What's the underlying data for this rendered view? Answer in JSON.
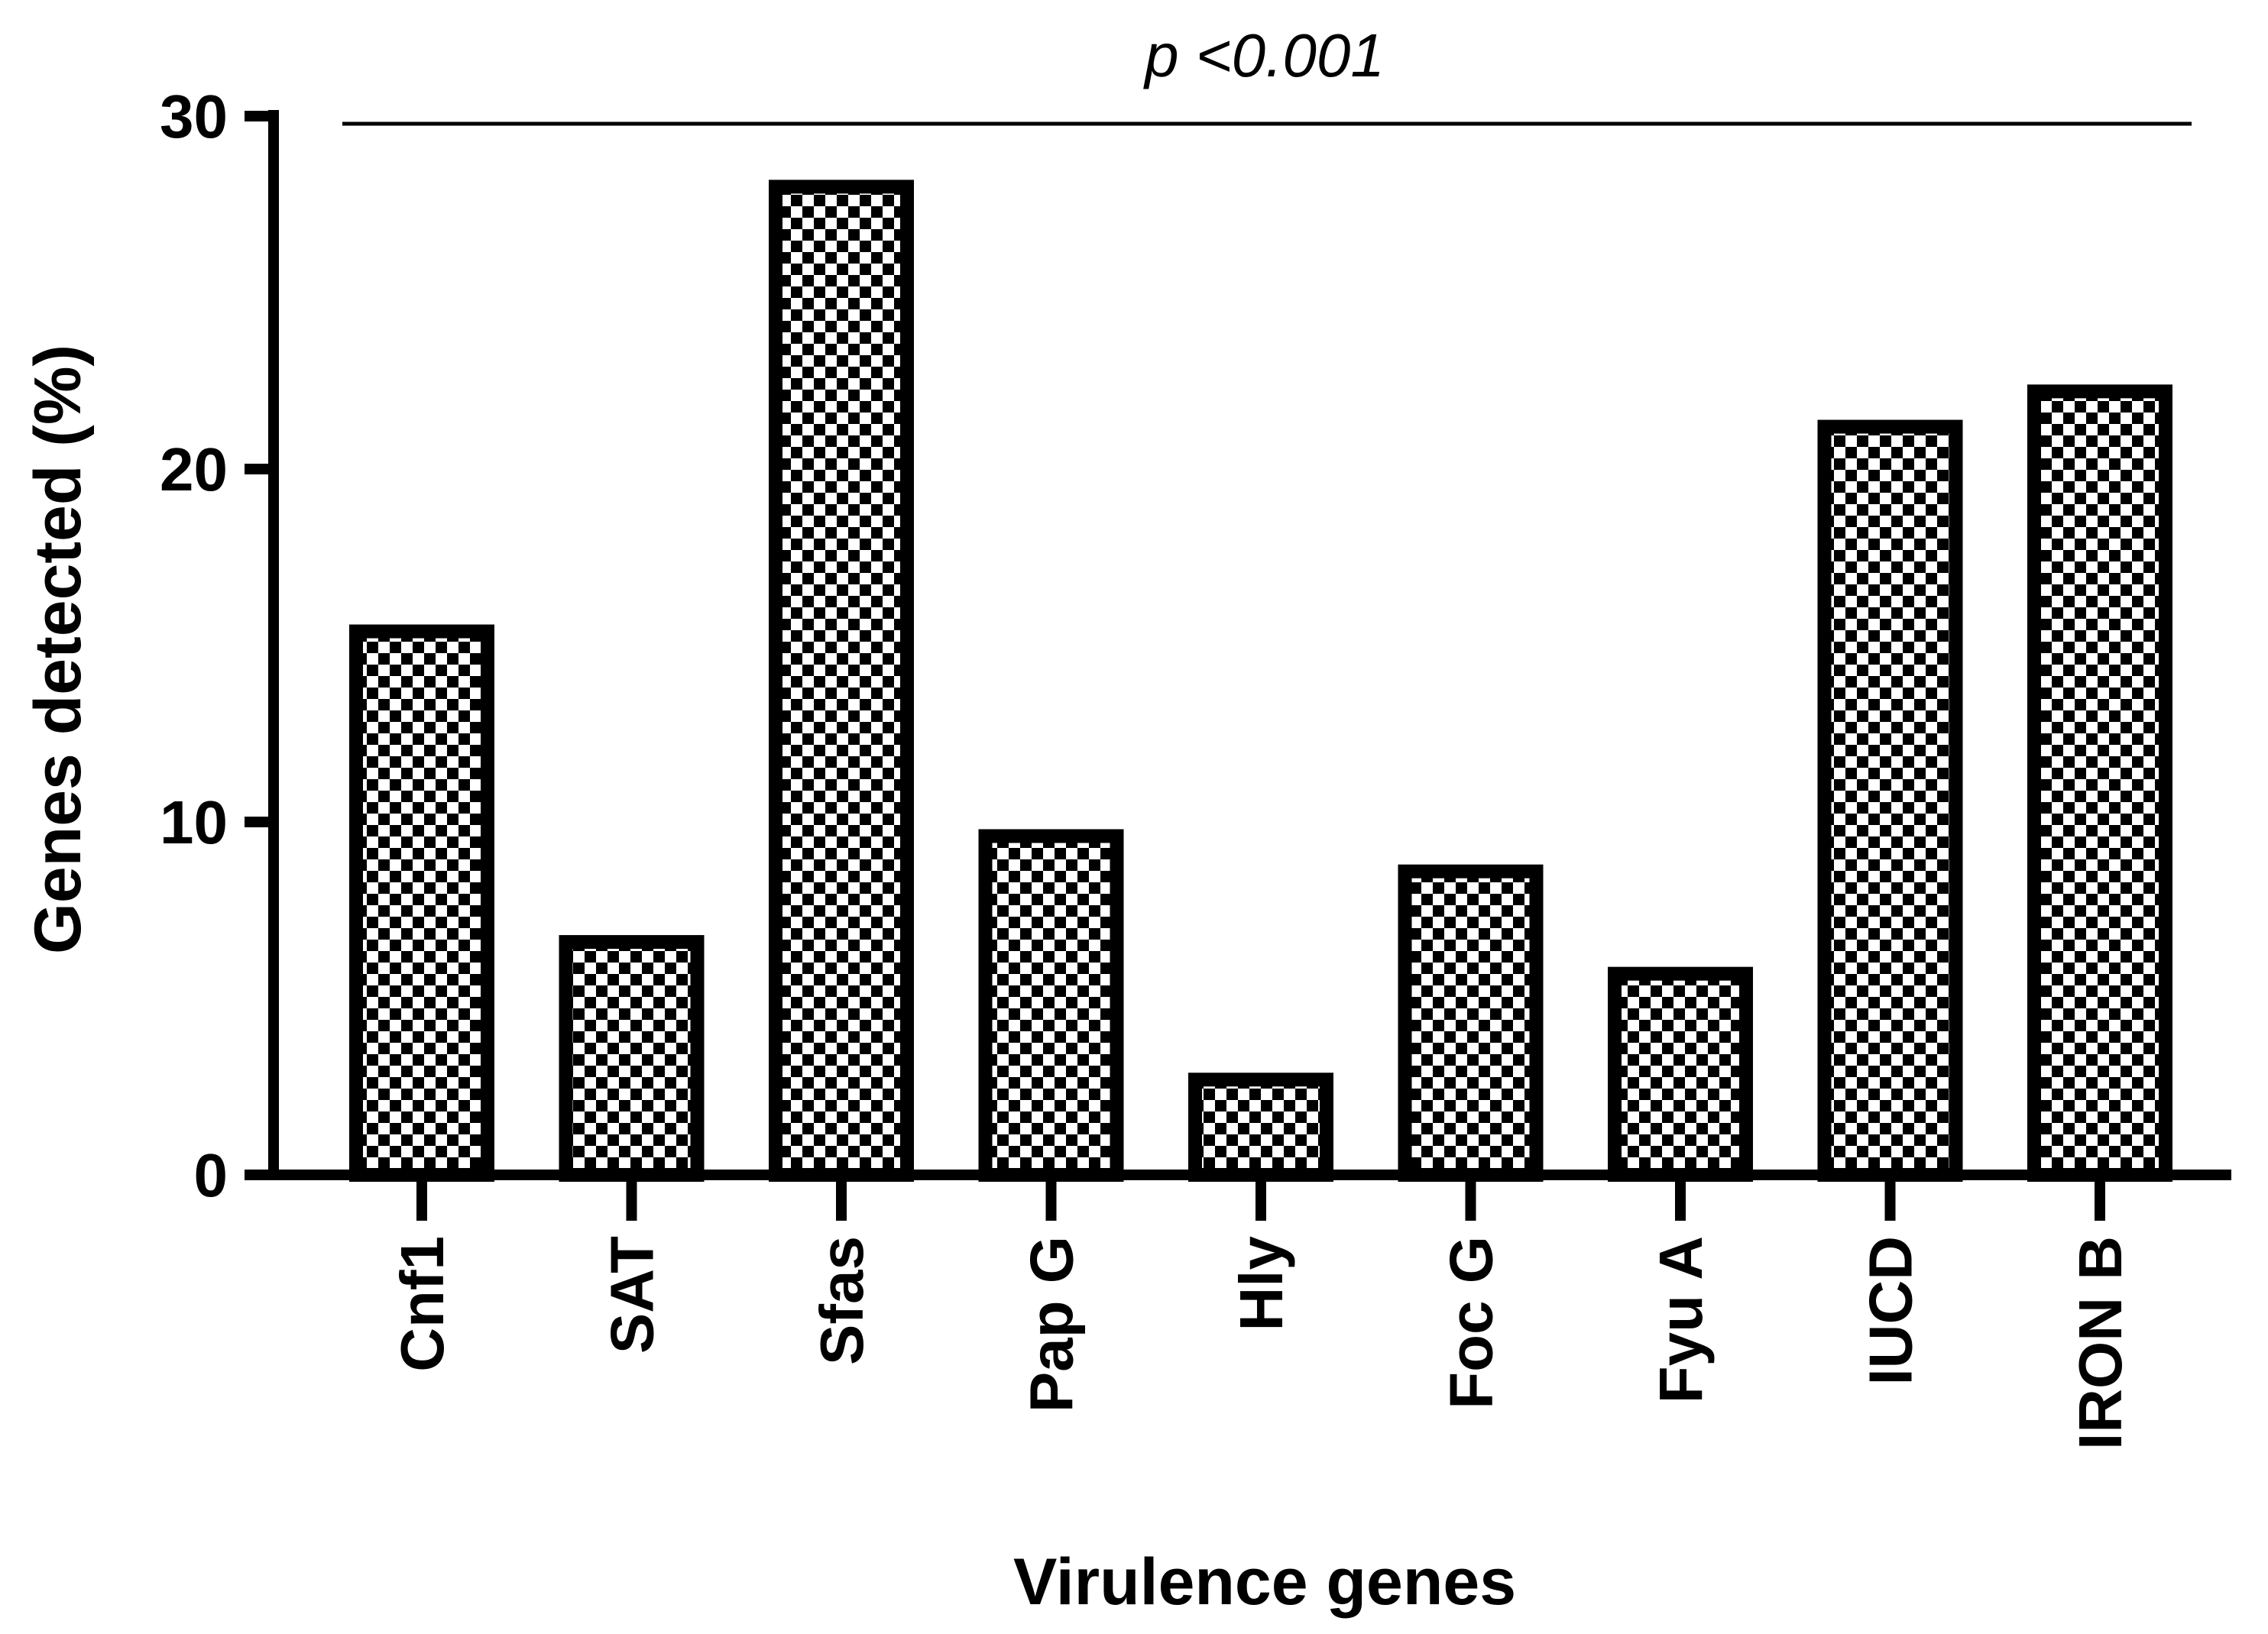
{
  "chart_data": {
    "type": "bar",
    "title": "",
    "xlabel": "Virulence genes",
    "ylabel": "Genes detected (%)",
    "categories": [
      "Cnf1",
      "SAT",
      "Sfas",
      "Pap G",
      "Hly",
      "Foc G",
      "Fyu A",
      "IUCD",
      "IRON B"
    ],
    "values": [
      15.4,
      6.6,
      28.0,
      9.6,
      2.7,
      8.6,
      5.7,
      21.2,
      22.2
    ],
    "ylim": [
      0,
      30
    ],
    "yticks": [
      "0",
      "10",
      "20",
      "30"
    ],
    "grid": false,
    "bar_fill": "checkerboard",
    "bar_color": "#000000",
    "annotation": {
      "text": "p <0.001"
    }
  }
}
